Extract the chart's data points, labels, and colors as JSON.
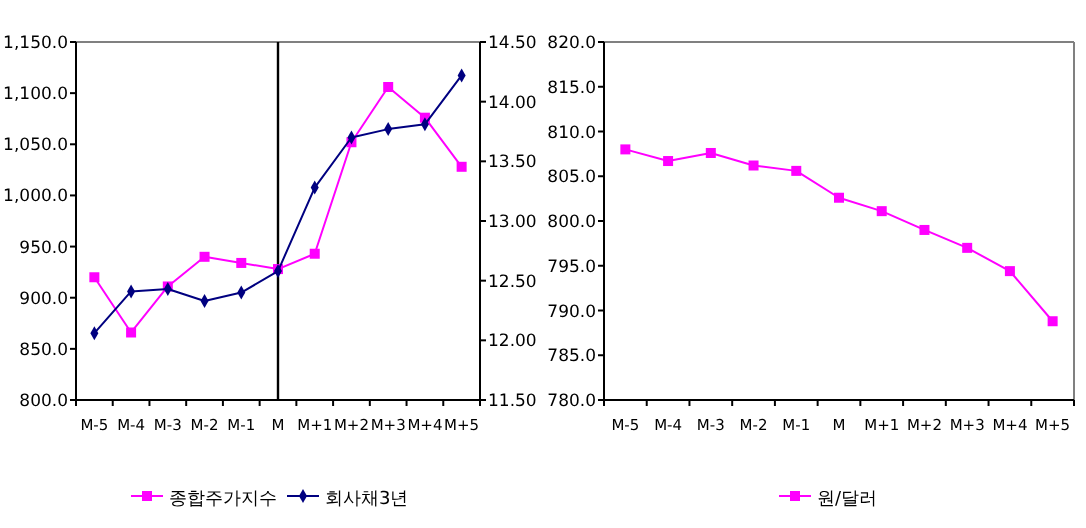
{
  "chart_data": [
    {
      "type": "line",
      "categories": [
        "M-5",
        "M-4",
        "M-3",
        "M-2",
        "M-1",
        "M",
        "M+1",
        "M+2",
        "M+3",
        "M+4",
        "M+5"
      ],
      "series": [
        {
          "name": "종합주가지수",
          "color": "#ff00ff",
          "marker": "square",
          "values": [
            920,
            866,
            911,
            940,
            934,
            928,
            943,
            1052,
            1106,
            1076,
            1028
          ]
        },
        {
          "name": "회사채3년",
          "color": "#000080",
          "marker": "diamond",
          "axis": "y2",
          "values": [
            12.06,
            12.41,
            12.43,
            12.33,
            12.4,
            12.58,
            13.28,
            13.7,
            13.77,
            13.81,
            14.22
          ]
        }
      ],
      "ylim": [
        800,
        1150
      ],
      "yticks": [
        {
          "value": 800,
          "label": "800.0"
        },
        {
          "value": 850,
          "label": "850.0"
        },
        {
          "value": 900,
          "label": "900.0"
        },
        {
          "value": 950,
          "label": "950.0"
        },
        {
          "value": 1000,
          "label": "1,000.0"
        },
        {
          "value": 1050,
          "label": "1,050.0"
        },
        {
          "value": 1100,
          "label": "1,100.0"
        },
        {
          "value": 1150,
          "label": "1,150.0"
        }
      ],
      "y2lim": [
        11.5,
        14.5
      ],
      "y2ticks": [
        {
          "value": 11.5,
          "label": "11.50"
        },
        {
          "value": 12,
          "label": "12.00"
        },
        {
          "value": 12.5,
          "label": "12.50"
        },
        {
          "value": 13,
          "label": "13.00"
        },
        {
          "value": 13.5,
          "label": "13.50"
        },
        {
          "value": 14,
          "label": "14.00"
        },
        {
          "value": 14.5,
          "label": "14.50"
        }
      ],
      "ref_lines": [
        {
          "axis": "x",
          "value": "M",
          "color": "#000000"
        }
      ],
      "legend": "bottom"
    },
    {
      "type": "line",
      "categories": [
        "M-5",
        "M-4",
        "M-3",
        "M-2",
        "M-1",
        "M",
        "M+1",
        "M+2",
        "M+3",
        "M+4",
        "M+5"
      ],
      "series": [
        {
          "name": "원/달러",
          "color": "#ff00ff",
          "marker": "square",
          "values": [
            808.0,
            806.7,
            807.6,
            806.2,
            805.6,
            802.6,
            801.1,
            799.0,
            797.0,
            794.4,
            788.8
          ]
        }
      ],
      "ylim": [
        780,
        820
      ],
      "yticks": [
        {
          "value": 780,
          "label": "780.0"
        },
        {
          "value": 785,
          "label": "785.0"
        },
        {
          "value": 790,
          "label": "790.0"
        },
        {
          "value": 795,
          "label": "795.0"
        },
        {
          "value": 800,
          "label": "800.0"
        },
        {
          "value": 805,
          "label": "805.0"
        },
        {
          "value": 810,
          "label": "810.0"
        },
        {
          "value": 815,
          "label": "815.0"
        },
        {
          "value": 820,
          "label": "820.0"
        }
      ],
      "legend": "bottom"
    }
  ]
}
